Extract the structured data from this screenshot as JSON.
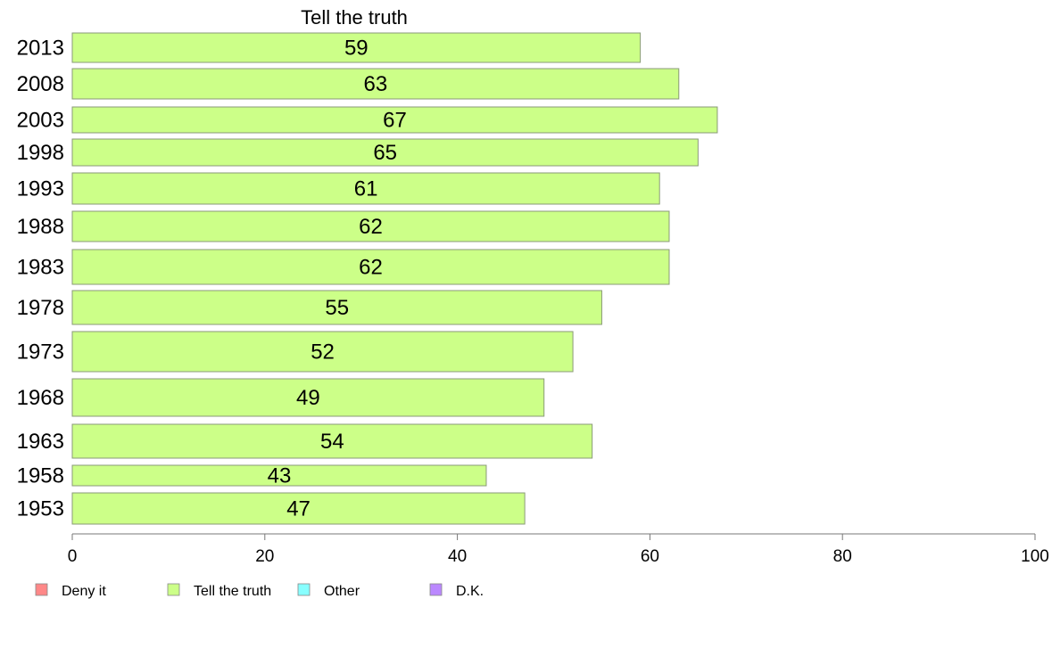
{
  "chart_data": {
    "type": "bar",
    "orientation": "horizontal",
    "title": "Tell the truth",
    "categories": [
      "2013",
      "2008",
      "2003",
      "1998",
      "1993",
      "1988",
      "1983",
      "1978",
      "1973",
      "1968",
      "1963",
      "1958",
      "1953"
    ],
    "series": [
      {
        "name": "Tell the truth",
        "color": "#ccff88",
        "values": [
          59,
          63,
          67,
          65,
          61,
          62,
          62,
          55,
          52,
          49,
          54,
          43,
          47
        ]
      }
    ],
    "xlim": [
      0,
      100
    ],
    "xticks": [
      0,
      20,
      40,
      60,
      80,
      100
    ],
    "xlabel": "",
    "ylabel": "",
    "grid": false,
    "legend": {
      "position": "bottom-left",
      "items": [
        {
          "label": "Deny it",
          "color": "#ff8888"
        },
        {
          "label": "Tell the truth",
          "color": "#ccff88"
        },
        {
          "label": "Other",
          "color": "#88ffff"
        },
        {
          "label": "D.K.",
          "color": "#bb88ff"
        }
      ]
    }
  }
}
